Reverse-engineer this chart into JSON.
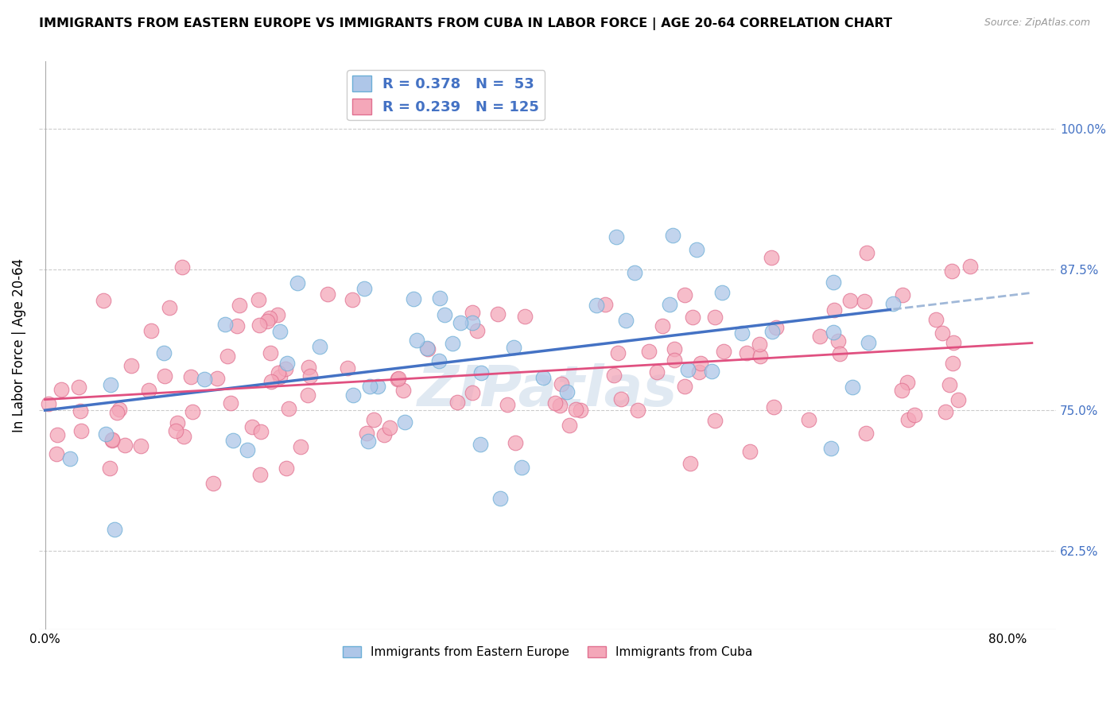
{
  "title": "IMMIGRANTS FROM EASTERN EUROPE VS IMMIGRANTS FROM CUBA IN LABOR FORCE | AGE 20-64 CORRELATION CHART",
  "source": "Source: ZipAtlas.com",
  "ylabel": "In Labor Force | Age 20-64",
  "yticks": [
    "62.5%",
    "75.0%",
    "87.5%",
    "100.0%"
  ],
  "ytick_values": [
    0.625,
    0.75,
    0.875,
    1.0
  ],
  "R_eastern": 0.378,
  "N_eastern": 53,
  "R_cuba": 0.239,
  "N_cuba": 125,
  "blue_color": "#aec6e8",
  "blue_edge": "#6baed6",
  "pink_color": "#f4a7b9",
  "pink_edge": "#e07090",
  "blue_line_color": "#4472c4",
  "pink_line_color": "#e05080",
  "dashed_line_color": "#a0b8d8",
  "label_eastern": "Immigrants from Eastern Europe",
  "label_cuba": "Immigrants from Cuba"
}
